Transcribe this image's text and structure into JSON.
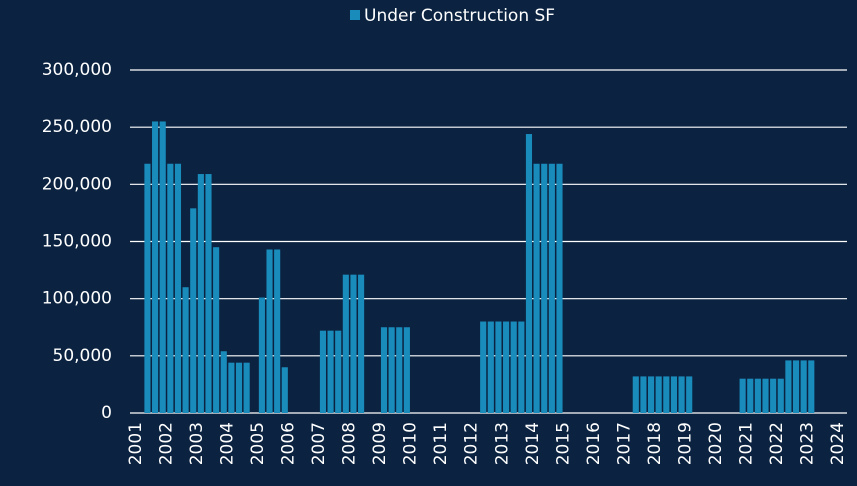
{
  "chart_data": {
    "type": "bar",
    "legend": "top",
    "series": [
      {
        "name": "Under Construction SF",
        "color": "#1a8cbc",
        "x": [
          2001.25,
          2001.5,
          2001.75,
          2002,
          2002.25,
          2002.5,
          2002.75,
          2003,
          2003.25,
          2003.5,
          2003.75,
          2004,
          2004.25,
          2004.5,
          2005,
          2005.25,
          2005.5,
          2005.75,
          2007,
          2007.25,
          2007.5,
          2007.75,
          2008,
          2008.25,
          2009,
          2009.25,
          2009.5,
          2009.75,
          2012.25,
          2012.5,
          2012.75,
          2013,
          2013.25,
          2013.5,
          2013.75,
          2014,
          2014.25,
          2014.5,
          2014.75,
          2017.25,
          2017.5,
          2017.75,
          2018,
          2018.25,
          2018.5,
          2018.75,
          2019,
          2020.75,
          2021,
          2021.25,
          2021.5,
          2021.75,
          2022,
          2022.25,
          2022.5,
          2022.75,
          2023
        ],
        "values": [
          218000,
          255000,
          255000,
          218000,
          218000,
          110000,
          179000,
          209000,
          209000,
          145000,
          54000,
          44000,
          44000,
          44000,
          101000,
          143000,
          143000,
          40000,
          72000,
          72000,
          72000,
          121000,
          121000,
          121000,
          75000,
          75000,
          75000,
          75000,
          80000,
          80000,
          80000,
          80000,
          80000,
          80000,
          244000,
          218000,
          218000,
          218000,
          218000,
          32000,
          32000,
          32000,
          32000,
          32000,
          32000,
          32000,
          32000,
          30000,
          30000,
          30000,
          30000,
          30000,
          30000,
          46000,
          46000,
          46000,
          46000
        ]
      }
    ],
    "xlim": [
      2001,
      2024
    ],
    "xticks": [
      2001,
      2002,
      2003,
      2004,
      2005,
      2006,
      2007,
      2008,
      2009,
      2010,
      2011,
      2012,
      2013,
      2014,
      2015,
      2016,
      2017,
      2018,
      2019,
      2020,
      2021,
      2022,
      2023,
      2024
    ],
    "ylim": [
      0,
      300000
    ],
    "yticks": [
      0,
      {
        "value": 50000,
        "label": "50,000"
      },
      {
        "value": 100000,
        "label": "100,000"
      },
      {
        "value": 150000,
        "label": "150,000"
      },
      {
        "value": 200000,
        "label": "200,000"
      },
      {
        "value": 250000,
        "label": "250,000"
      },
      {
        "value": 300000,
        "label": "300,000"
      }
    ],
    "grid": true
  }
}
